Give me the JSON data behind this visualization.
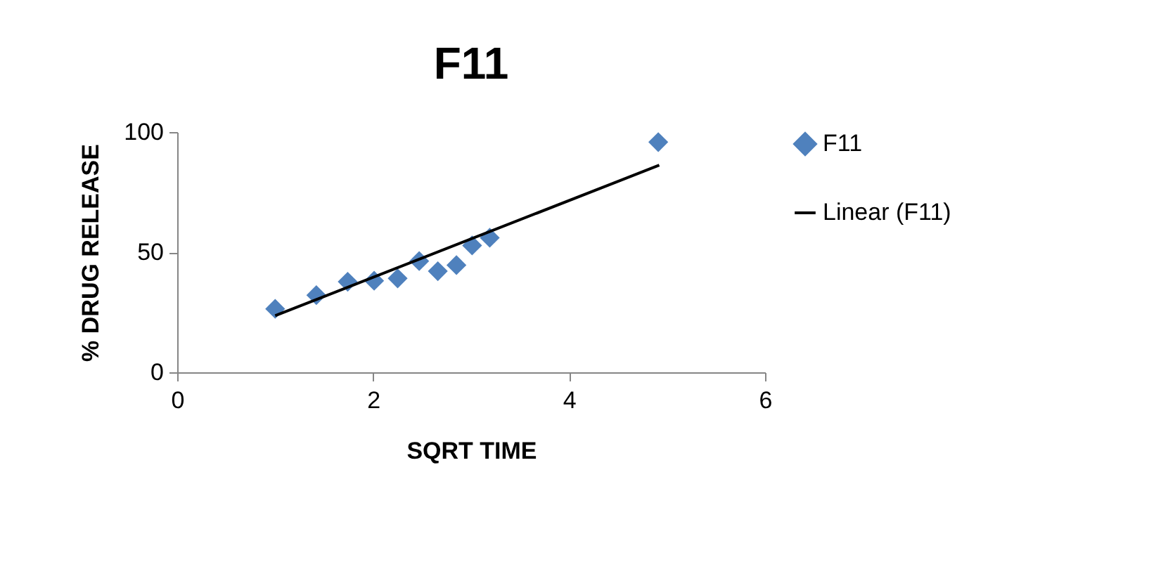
{
  "chart_data": {
    "type": "scatter",
    "title": "F11",
    "xlabel": "SQRT TIME",
    "ylabel": "% DRUG RELEASE",
    "xlim": [
      0,
      6
    ],
    "xticks": [
      0,
      2,
      4,
      6
    ],
    "ylim": [
      0,
      100
    ],
    "yticks": [
      0,
      50,
      100
    ],
    "grid": false,
    "legend": "right",
    "x": [
      1.0,
      1.42,
      1.74,
      2.01,
      2.25,
      2.47,
      2.66,
      2.85,
      3.01,
      3.19,
      4.91
    ],
    "series": [
      {
        "name": "F11",
        "color": "#4f81bd",
        "marker": "diamond",
        "values": [
          26.4,
          32.1,
          37.7,
          38.1,
          39.1,
          46.3,
          42.1,
          44.6,
          52.8,
          56.0,
          95.8
        ]
      },
      {
        "name": "Linear (F11)",
        "type": "line",
        "color": "#000000",
        "x": [
          1.0,
          4.92
        ],
        "values": [
          23.6,
          86.2
        ],
        "line_style": "solid"
      }
    ]
  }
}
